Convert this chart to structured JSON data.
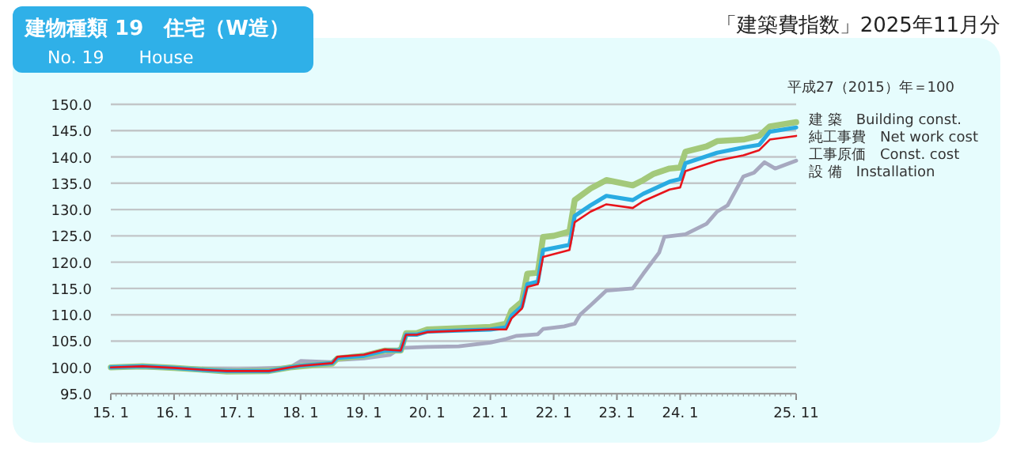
{
  "chart_data": {
    "type": "line",
    "title": "建物種類 19　住宅（W造）",
    "subtitle": "No. 19　　House",
    "annotations": [
      "「建築費指数」2025年11月分",
      "平成27（2015）年＝100"
    ],
    "xlim": [
      "2015-01",
      "2025-11"
    ],
    "xticks": [
      {
        "value": "2015-01",
        "label": "15. 1"
      },
      {
        "value": "2016-01",
        "label": "16. 1"
      },
      {
        "value": "2017-01",
        "label": "17. 1"
      },
      {
        "value": "2018-01",
        "label": "18. 1"
      },
      {
        "value": "2019-01",
        "label": "19. 1"
      },
      {
        "value": "2020-01",
        "label": "20. 1"
      },
      {
        "value": "2021-01",
        "label": "21. 1"
      },
      {
        "value": "2022-01",
        "label": "22. 1"
      },
      {
        "value": "2023-01",
        "label": "23. 1"
      },
      {
        "value": "2024-01",
        "label": "24. 1"
      },
      {
        "value": "2025-11",
        "label": "25. 11"
      }
    ],
    "ylim": [
      95,
      150
    ],
    "yticks": [
      {
        "value": 95,
        "label": "95.0"
      },
      {
        "value": 100,
        "label": "100.0"
      },
      {
        "value": 105,
        "label": "105.0"
      },
      {
        "value": 110,
        "label": "110.0"
      },
      {
        "value": 115,
        "label": "115.0"
      },
      {
        "value": 120,
        "label": "120.0"
      },
      {
        "value": 125,
        "label": "125.0"
      },
      {
        "value": 130,
        "label": "130.0"
      },
      {
        "value": 135,
        "label": "135.0"
      },
      {
        "value": 140,
        "label": "140.0"
      },
      {
        "value": 145,
        "label": "145.0"
      },
      {
        "value": 150,
        "label": "150.0"
      }
    ],
    "grid": "y",
    "marker": "none",
    "line_style": "solid",
    "series": [
      {
        "name": "設 備　Installation",
        "color": "#a7a9c0",
        "x": [
          "2015-01",
          "2016-01",
          "2017-01",
          "2017-11",
          "2018-01",
          "2018-07",
          "2018-08",
          "2019-01",
          "2019-06",
          "2019-08",
          "2020-01",
          "2020-07",
          "2021-01",
          "2021-04",
          "2021-06",
          "2021-10",
          "2021-11",
          "2022-03",
          "2022-05",
          "2022-06",
          "2022-08",
          "2022-11",
          "2023-04",
          "2023-06",
          "2023-09",
          "2023-10",
          "2024-02",
          "2024-06",
          "2024-08",
          "2024-10",
          "2025-01",
          "2025-03",
          "2025-05",
          "2025-07",
          "2025-11"
        ],
        "values": [
          100,
          99.9,
          99.6,
          100,
          101.2,
          101,
          101.4,
          101.7,
          102.4,
          103.7,
          103.9,
          104,
          104.7,
          105.4,
          106,
          106.3,
          107.3,
          107.8,
          108.3,
          110,
          111.8,
          114.6,
          115,
          117.8,
          121.8,
          124.8,
          125.3,
          127.3,
          129.6,
          130.8,
          136.3,
          137,
          139,
          137.8,
          139.3
        ]
      },
      {
        "name": "建 築　Building const.",
        "color": "#a3c97a",
        "x": [
          "2015-01",
          "2015-07",
          "2016-01",
          "2016-07",
          "2016-11",
          "2017-07",
          "2017-11",
          "2018-01",
          "2018-07",
          "2018-08",
          "2019-01",
          "2019-05",
          "2019-08",
          "2019-09",
          "2019-11",
          "2020-01",
          "2021-01",
          "2021-04",
          "2021-05",
          "2021-07",
          "2021-08",
          "2021-10",
          "2021-11",
          "2022-01",
          "2022-04",
          "2022-05",
          "2022-08",
          "2022-11",
          "2023-04",
          "2023-06",
          "2023-08",
          "2023-11",
          "2024-01",
          "2024-02",
          "2024-06",
          "2024-08",
          "2025-01",
          "2025-04",
          "2025-06",
          "2025-11"
        ],
        "values": [
          100,
          100.2,
          99.9,
          99.5,
          99.2,
          99.3,
          100,
          100.2,
          100.7,
          101.7,
          102.2,
          103.2,
          103.2,
          106.5,
          106.5,
          107.2,
          107.7,
          108.3,
          110.8,
          112.5,
          117.8,
          118,
          124.8,
          125,
          125.8,
          131.8,
          134,
          135.6,
          134.6,
          135.6,
          136.8,
          137.8,
          138,
          141,
          142,
          143,
          143.3,
          144,
          145.8,
          146.6
        ]
      },
      {
        "name": "純工事費　Net work cost",
        "color": "#29abe2",
        "x": [
          "2015-01",
          "2015-07",
          "2016-01",
          "2016-07",
          "2016-11",
          "2017-07",
          "2017-11",
          "2018-01",
          "2018-07",
          "2018-08",
          "2019-01",
          "2019-05",
          "2019-08",
          "2019-09",
          "2019-11",
          "2020-01",
          "2021-01",
          "2021-04",
          "2021-05",
          "2021-07",
          "2021-08",
          "2021-10",
          "2021-11",
          "2022-04",
          "2022-05",
          "2022-08",
          "2022-11",
          "2023-04",
          "2023-06",
          "2023-11",
          "2024-01",
          "2024-02",
          "2024-08",
          "2025-01",
          "2025-04",
          "2025-06",
          "2025-11"
        ],
        "values": [
          100,
          100.2,
          99.9,
          99.5,
          99.3,
          99.3,
          100,
          100.3,
          100.8,
          101.8,
          102.2,
          103.2,
          103.2,
          106.2,
          106.2,
          106.8,
          107.2,
          107.6,
          109.8,
          111.6,
          115.8,
          116.3,
          122.3,
          123.3,
          128.8,
          130.8,
          132.6,
          131.8,
          133,
          135.3,
          135.8,
          138.8,
          140.8,
          141.8,
          142.3,
          144.8,
          145.6
        ]
      },
      {
        "name": "工事原価　Const. cost",
        "color": "#e8141b",
        "x": [
          "2015-01",
          "2015-07",
          "2016-01",
          "2016-07",
          "2016-11",
          "2017-07",
          "2017-11",
          "2018-01",
          "2018-07",
          "2018-08",
          "2019-01",
          "2019-05",
          "2019-08",
          "2019-09",
          "2019-11",
          "2020-01",
          "2021-01",
          "2021-04",
          "2021-05",
          "2021-07",
          "2021-08",
          "2021-10",
          "2021-11",
          "2022-04",
          "2022-05",
          "2022-08",
          "2022-11",
          "2023-04",
          "2023-06",
          "2023-11",
          "2024-01",
          "2024-02",
          "2024-08",
          "2025-01",
          "2025-04",
          "2025-06",
          "2025-11"
        ],
        "values": [
          100,
          100.2,
          99.9,
          99.5,
          99.3,
          99.3,
          100,
          100.3,
          100.8,
          102,
          102.4,
          103.4,
          103.2,
          106.2,
          106.2,
          106.7,
          107.2,
          107.2,
          109.3,
          111.2,
          115.3,
          115.8,
          121,
          122.3,
          127.6,
          129.6,
          131,
          130.3,
          131.6,
          133.8,
          134.2,
          137.3,
          139.3,
          140.3,
          141.3,
          143.3,
          144
        ]
      }
    ]
  }
}
